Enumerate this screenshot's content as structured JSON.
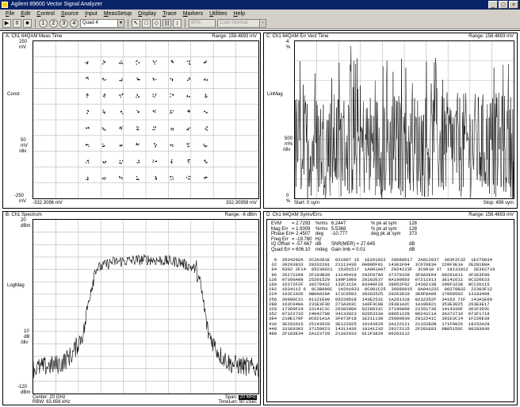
{
  "window": {
    "title": "Agilent 89600 Vector Signal Analyzer",
    "minimize": "_",
    "maximize": "□",
    "close": "×"
  },
  "menu": {
    "items": [
      {
        "u": "F",
        "rest": "ile"
      },
      {
        "u": "E",
        "rest": "dit"
      },
      {
        "u": "C",
        "rest": "ontrol"
      },
      {
        "u": "S",
        "rest": "ource"
      },
      {
        "u": "I",
        "rest": "nput"
      },
      {
        "u": "M",
        "rest": "easSetup"
      },
      {
        "u": "D",
        "rest": "isplay"
      },
      {
        "u": "T",
        "rest": "race"
      },
      {
        "u": "M",
        "rest": "arkers"
      },
      {
        "u": "U",
        "rest": "tilities"
      },
      {
        "u": "H",
        "rest": "elp"
      }
    ]
  },
  "toolbar": {
    "play": "▶",
    "pause": "II",
    "stop": "■",
    "btn1": "1",
    "btn2": "2",
    "btn3": "3",
    "btn4": "4",
    "layout_value": "Quad 4",
    "pointer": "↖",
    "rect": "□",
    "marker": "◇",
    "scale": "|||",
    "bars": "↕",
    "zoom_value": "80%",
    "color_value": "Color Normal",
    "dropdown_arrow": "▼"
  },
  "panels": {
    "a": {
      "title": "A: Ch1 64QAM Meas Time",
      "range": "Range: 158.4893 mV",
      "y_top": "250",
      "y_top_unit": "mV",
      "y_mid": "Const",
      "y_div": "50",
      "y_div_unit": "mV",
      "y_div_label": "/div",
      "y_bot": "-250",
      "y_bot_unit": "mV",
      "x_left": "-332.3096 mV",
      "x_right": "332.30958 mV"
    },
    "b": {
      "title": "C: Ch1 64QAM Err Vect Time",
      "range": "Range: 158.4893 mV",
      "y_top": "4",
      "y_top_unit": "%",
      "y_mid": "LinMag",
      "y_div": "500",
      "y_div_unit": "m%",
      "y_div_label": "/div",
      "y_bot": "0",
      "y_bot_unit": "%",
      "x_left": "Start: 0  sym",
      "x_right": "Stop: 499  sym"
    },
    "c": {
      "title": "B: Ch1 Spectrum",
      "range": "Range: -6 dBm",
      "y_top": "20",
      "y_top_unit": "dBm",
      "y_mid": "LogMag",
      "y_div": "10",
      "y_div_unit": "dB",
      "y_div_label": "/div",
      "y_bot": "-120",
      "y_bot_unit": "dBm",
      "x_left": "Center: 20 GHz",
      "x_left2": "RBW: 63.656 kHz",
      "x_right_label": "Span:",
      "x_right_value": "20 MHz",
      "x_right2": "TimeLen: 60 uSec"
    },
    "d": {
      "title": "D: Ch1 64QAM Syms/Errs",
      "range": "Range: 158.4893 mV",
      "errors": [
        {
          "name": "EVM",
          "value": "= 2.7293",
          "unit": "%rms",
          "val2": "6.2447",
          "unit2": "% pk  at  sym",
          "sym": "128"
        },
        {
          "name": "Mag Err",
          "value": "= 1.9309",
          "unit": "%rms",
          "val2": "5.5368",
          "unit2": "% pk  at  sym",
          "sym": "128"
        },
        {
          "name": "Phase Err",
          "value": "= 2.4507",
          "unit": "deg",
          "val2": "-10.777",
          "unit2": "deg pk  at  sym",
          "sym": "373"
        },
        {
          "name": "Freq Err",
          "value": "= -19.780",
          "unit": "Hz",
          "val2": "",
          "unit2": "",
          "sym": ""
        },
        {
          "name": "IQ Offset",
          "value": "= -57.667",
          "unit": "dB",
          "val2": "SNR(MER) = 27.645",
          "unit2": "",
          "sym": "dB"
        },
        {
          "name": "Quad Err",
          "value": "= 606.10",
          "unit": "mdeg",
          "val2": "Gain Imb  = 0.01",
          "unit2": "",
          "sym": "dB"
        }
      ],
      "symbols": [
        "  0  3534202A  2C2A381E  031907 15  1E201922  20080D17  2A012037  383F2C32  1E270034",
        " 32  39293833  20332201  21113436  0000DF01  14301F04  1C07083A  220F3E1A  2E28180A",
        " 64  0302 2F14  05230021  153D1517  1A001A07  2924223F  3C0910 37  18131012  2E362719",
        " 96  35272209  2F193B39  13140419  292F0706  37370339  3F0A2E04  00291011  3F1E3F00",
        "128  07360A08  25201529  190F1000  28102E37  0A190603  07211613  3E141611  0C320633",
        "160  1D372F2F  18270432  132C1C2A  03340F28  38052F02  24182138  290F3238  0CC20115",
        "192  1034113 6  0C3B090C  14201933  0C081C25  36080915  0A04122C  00270B32  22303F12",
        "224  103C1936  0B0A020A  1C1C0503  39203525  29263D10  3E0F0A09  17060502  13183408",
        "256  36000C31  01121E00  05220D18  143E2531  1A261318  0232352F  34163 71F  143A1E09",
        "288  163C040A  231E3F3D  273A363C  1A0F3C08  28381A2C  1A100821  353E3025  263E3E17",
        "320  173D0F19  33141C1C  2638390A  0228031C  27190808  22351730  1414330F  301F3D3C",
        "352  0732271D  24042708  34133023  0205333A  08051228  00241C1A  3A373716  073F1718",
        "384  210E170F  0C021A1A  3F073F18  1E211130  25000030  2812241C  391E3C14  1F220E38",
        "416  3E262616  25143628  3E122025  10143629  2A122121  21152B2B  171F0026  18152A28",
        "448  331E0303  37150023  14311436  1014121D  29372115  2F281E03  0B05150C  00283030",
        "480  2F183E34  2A123720  21102933  011F3820  00203112"
      ]
    }
  },
  "chart_data": [
    {
      "type": "scatter",
      "title": "A: Ch1 64QAM Meas Time",
      "xlabel": "",
      "ylabel": "Const",
      "xlim": [
        -332.3096,
        332.30958
      ],
      "ylim": [
        -250,
        250
      ],
      "grid": true,
      "grid_divisions": [
        10,
        10
      ],
      "points_per_cluster": 5,
      "constellation_levels_x": [
        -0.875,
        -0.625,
        -0.375,
        -0.125,
        0.125,
        0.375,
        0.625,
        0.875
      ],
      "constellation_levels_y": [
        -0.875,
        -0.625,
        -0.375,
        -0.125,
        0.125,
        0.375,
        0.625,
        0.875
      ],
      "constellation_units": "fraction of half-range"
    },
    {
      "type": "bar",
      "title": "C: Ch1 64QAM Err Vect Time",
      "xlabel": "sym",
      "ylabel": "LinMag",
      "xlim": [
        0,
        499
      ],
      "ylim": [
        0,
        4
      ],
      "grid": true,
      "grid_divisions": [
        10,
        8
      ],
      "typical_max": 2.7,
      "peak_value": 6.2447,
      "peak_at_sym": 128
    },
    {
      "type": "line",
      "title": "B: Ch1 Spectrum",
      "xlabel": "",
      "ylabel": "LogMag",
      "xlim": [
        -10,
        10
      ],
      "ylim": [
        -120,
        20
      ],
      "grid": true,
      "grid_divisions": [
        10,
        14
      ],
      "shape_x_mhz": [
        -10,
        -7.5,
        -6.5,
        -5.5,
        -5.0,
        -4.5,
        -3,
        0,
        3,
        4.5,
        5.0,
        5.5,
        6.5,
        7.5,
        10
      ],
      "shape_y_dbm": [
        -100,
        -96,
        -88,
        -70,
        -40,
        -20,
        -14,
        -12,
        -14,
        -20,
        -40,
        -70,
        -88,
        -96,
        -100
      ]
    }
  ]
}
